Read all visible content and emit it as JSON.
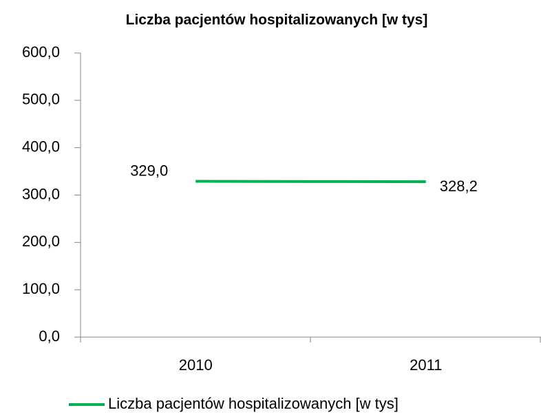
{
  "chart_data": {
    "type": "line",
    "title": "Liczba pacjentów hospitalizowanych [w tys]",
    "categories": [
      "2010",
      "2011"
    ],
    "series": [
      {
        "name": "Liczba pacjentów hospitalizowanych [w tys]",
        "color": "#00b050",
        "values": [
          329.0,
          328.2
        ],
        "value_labels": [
          "329,0",
          "328,2"
        ]
      }
    ],
    "ylim": [
      0,
      600
    ],
    "yticks": [
      {
        "value": 0,
        "label": "0,0"
      },
      {
        "value": 100,
        "label": "100,0"
      },
      {
        "value": 200,
        "label": "200,0"
      },
      {
        "value": 300,
        "label": "300,0"
      },
      {
        "value": 400,
        "label": "400,0"
      },
      {
        "value": 500,
        "label": "500,0"
      },
      {
        "value": 600,
        "label": "600,0"
      }
    ],
    "grid": false,
    "legend": "bottom"
  }
}
